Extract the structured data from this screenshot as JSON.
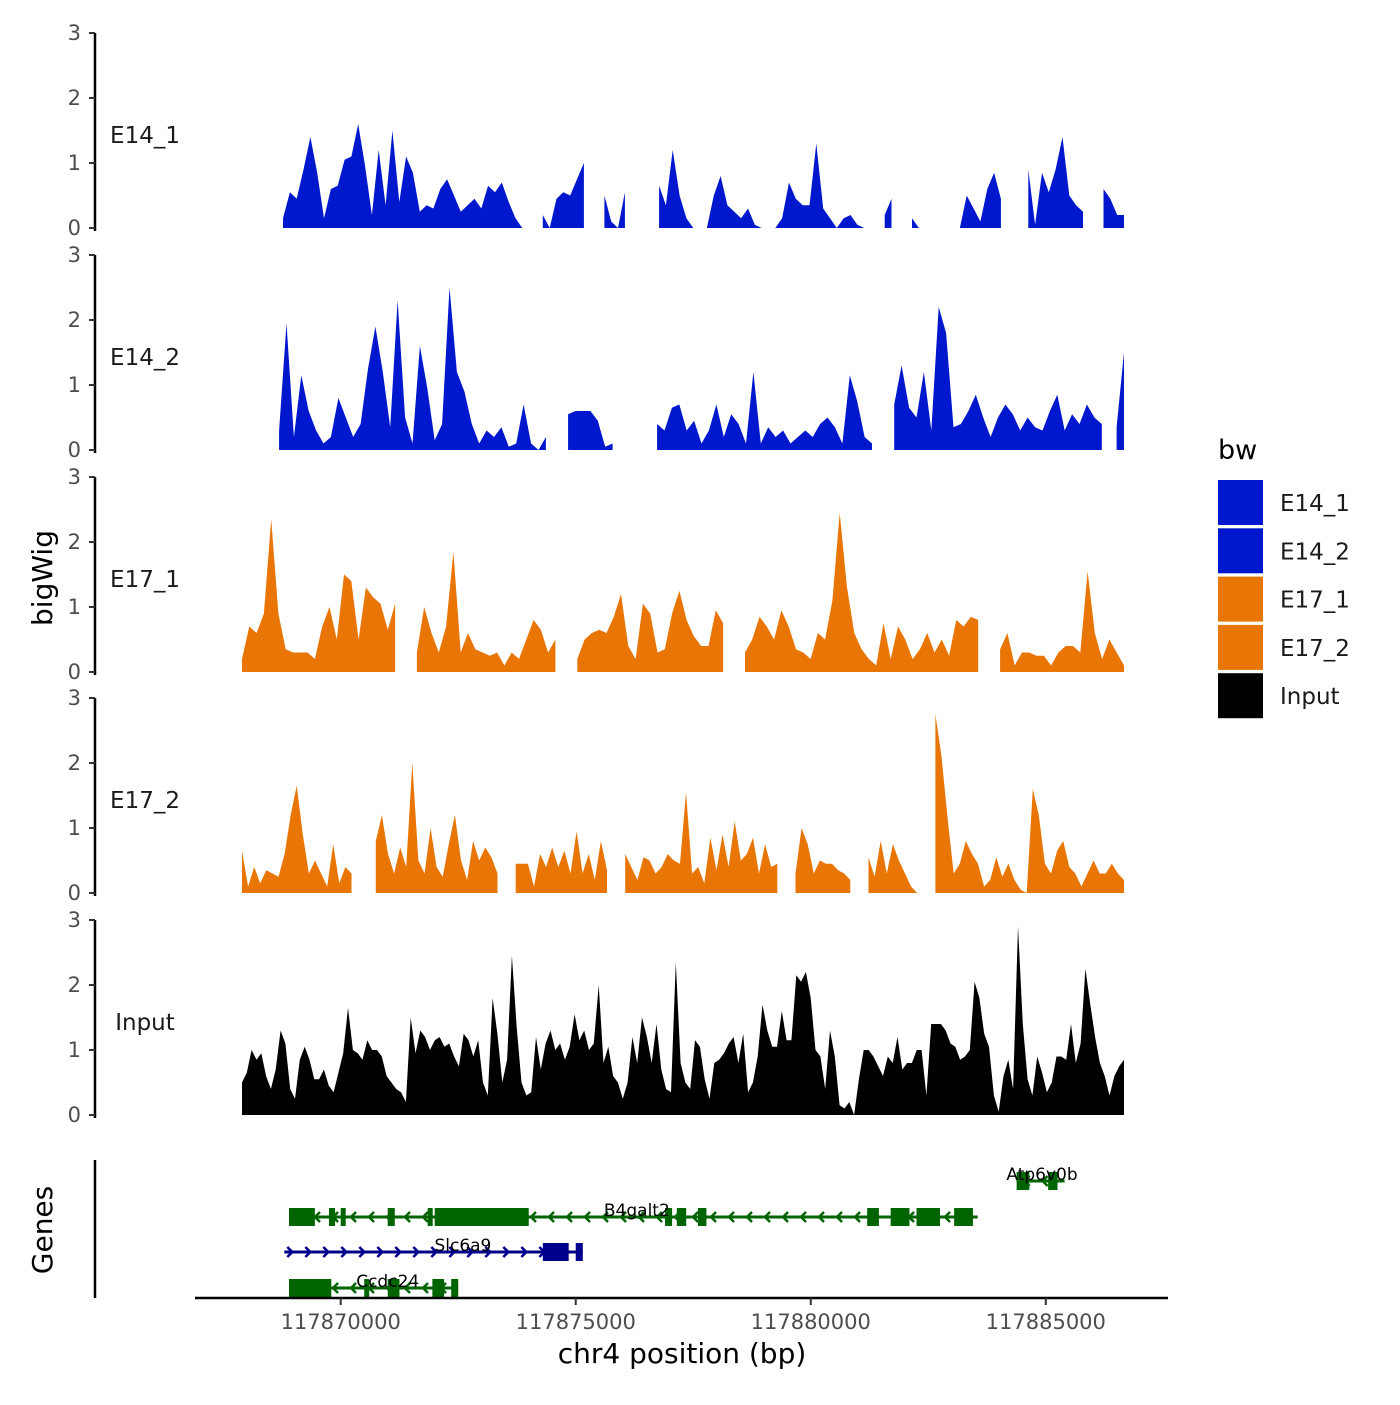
{
  "chart_data": {
    "type": "area",
    "title": "",
    "xlabel": "chr4 position (bp)",
    "ylabel": "bigWig",
    "genes_panel_label": "Genes",
    "xlim": [
      117866900,
      117887600
    ],
    "ylim": [
      0,
      3
    ],
    "y_ticks": [
      0,
      1,
      2,
      3
    ],
    "x_ticks": [
      117870000,
      117875000,
      117880000,
      117885000
    ],
    "x_tick_labels": [
      "117870000",
      "117875000",
      "117880000",
      "117885000"
    ],
    "legend": {
      "title": "bw",
      "position": "right",
      "entries": [
        {
          "label": "E14_1",
          "color": "#0018CD"
        },
        {
          "label": "E14_2",
          "color": "#0018CD"
        },
        {
          "label": "E17_1",
          "color": "#E87504"
        },
        {
          "label": "E17_2",
          "color": "#E87504"
        },
        {
          "label": "Input",
          "color": "#000000"
        }
      ]
    },
    "series": [
      {
        "name": "E14_1",
        "color": "#0018CD",
        "values": [
          0,
          0.25,
          0,
          0,
          0,
          0.35,
          0.15,
          0.55,
          0.45,
          0.9,
          1.4,
          0.85,
          0.15,
          0.6,
          0.65,
          1.05,
          1.1,
          1.6,
          0.95,
          0.2,
          1.2,
          0.35,
          1.5,
          0.4,
          1.1,
          0.85,
          0.25,
          0.35,
          0.3,
          0.6,
          0.75,
          0.5,
          0.25,
          0.35,
          0.45,
          0.3,
          0.65,
          0.55,
          0.7,
          0.4,
          0.15,
          0,
          0.55,
          0.6,
          0.2,
          0,
          0.45,
          0.55,
          0.5,
          0.75,
          1,
          0.5,
          0.95,
          0.5,
          0.1,
          0,
          0.55,
          1.25,
          0.45,
          0.35,
          1.48,
          0.65,
          0.35,
          1.2,
          0.5,
          0.15,
          0,
          0,
          0,
          0.5,
          0.8,
          0.35,
          0.25,
          0.15,
          0.3,
          0.05,
          0,
          0,
          0,
          0.15,
          0.7,
          0.45,
          0.35,
          0.35,
          1.3,
          0.3,
          0.15,
          0,
          0.15,
          0.2,
          0.05,
          0,
          0.25,
          0,
          0.2,
          0.45,
          0.1,
          0.25,
          0.15,
          0,
          0,
          0,
          0,
          1.55,
          0.9,
          0,
          0.5,
          0.3,
          0.1,
          0.6,
          0.85,
          0.45,
          0.1,
          0,
          0,
          0.9,
          0.05,
          0.85,
          0.55,
          0.9,
          1.4,
          0.5,
          0.35,
          0.25,
          0.2,
          0,
          0.6,
          0.45,
          0.2,
          0.2
        ],
        "gaps": [
          [
            0,
            1
          ],
          [
            3,
            5
          ],
          [
            42,
            43
          ],
          [
            51,
            52
          ],
          [
            57,
            60
          ],
          [
            92,
            93
          ],
          [
            96,
            97
          ],
          [
            101,
            104
          ],
          [
            112,
            114
          ],
          [
            124,
            125
          ]
        ]
      },
      {
        "name": "E14_2",
        "color": "#0018CD",
        "values": [
          0,
          0,
          0,
          0,
          0.1,
          0.3,
          1.95,
          0.2,
          1.15,
          0.6,
          0.3,
          0.1,
          0.2,
          0.8,
          0.5,
          0.2,
          0.4,
          1.25,
          1.9,
          1.2,
          0.35,
          2.3,
          0.5,
          0.1,
          1.6,
          0.95,
          0.15,
          0.4,
          2.5,
          1.2,
          0.9,
          0.4,
          0.1,
          0.3,
          0.2,
          0.35,
          0.05,
          0.1,
          0.7,
          0.1,
          0,
          0.2,
          0,
          0,
          0.55,
          0.6,
          0.6,
          0.6,
          0.45,
          0.05,
          0.1,
          0,
          0.2,
          0.1,
          0,
          0.15,
          0.4,
          0.3,
          0.65,
          0.7,
          0.3,
          0.45,
          0.1,
          0.3,
          0.7,
          0.2,
          0.55,
          0.4,
          0.1,
          1.2,
          0.1,
          0.35,
          0.2,
          0.3,
          0.1,
          0.2,
          0.3,
          0.2,
          0.4,
          0.5,
          0.35,
          0.1,
          1.15,
          0.75,
          0.2,
          0.1,
          0.3,
          0,
          0.7,
          1.3,
          0.65,
          0.5,
          1.2,
          0.3,
          2.2,
          1.8,
          0.35,
          0.4,
          0.6,
          0.85,
          0.5,
          0.2,
          0.5,
          0.7,
          0.55,
          0.3,
          0.5,
          0.35,
          0.3,
          0.6,
          0.85,
          0.3,
          0.55,
          0.4,
          0.7,
          0.5,
          0.4,
          0.6,
          0.35,
          1.5
        ],
        "gaps": [
          [
            0,
            4
          ],
          [
            42,
            43
          ],
          [
            51,
            52
          ],
          [
            54,
            55
          ],
          [
            86,
            87
          ],
          [
            117,
            117
          ]
        ]
      },
      {
        "name": "E17_1",
        "color": "#E87504",
        "values": [
          0.2,
          0.7,
          0.6,
          0.9,
          2.35,
          0.9,
          0.35,
          0.3,
          0.3,
          0.3,
          0.2,
          0.7,
          1,
          0.5,
          1.5,
          1.4,
          0.5,
          1.3,
          1.15,
          1.05,
          0.65,
          1.05,
          0.3,
          0,
          0.3,
          1,
          0.6,
          0.3,
          0.7,
          1.85,
          0.3,
          0.6,
          0.35,
          0.3,
          0.25,
          0.3,
          0.1,
          0.3,
          0.2,
          0.5,
          0.8,
          0.65,
          0.3,
          0.5,
          0.25,
          0,
          0.2,
          0.5,
          0.6,
          0.65,
          0.6,
          0.85,
          1.2,
          0.4,
          0.2,
          1.05,
          0.9,
          0.3,
          0.35,
          0.9,
          1.25,
          0.8,
          0.55,
          0.4,
          0.4,
          0.95,
          0.75,
          0.35,
          0,
          0.3,
          0.5,
          0.85,
          0.7,
          0.5,
          0.95,
          0.7,
          0.35,
          0.3,
          0.2,
          0.6,
          0.5,
          1.1,
          2.45,
          1.3,
          0.6,
          0.35,
          0.2,
          0.1,
          0.75,
          0.2,
          0.7,
          0.5,
          0.2,
          0.35,
          0.6,
          0.3,
          0.5,
          0.25,
          0.8,
          0.7,
          0.85,
          0.8,
          0.25,
          0,
          0.35,
          0.6,
          0.1,
          0.3,
          0.3,
          0.25,
          0.25,
          0.1,
          0.3,
          0.4,
          0.4,
          0.3,
          1.55,
          0.6,
          0.2,
          0.5,
          0.3,
          0.1
        ],
        "gaps": [
          [
            22,
            23
          ],
          [
            44,
            45
          ],
          [
            67,
            68
          ],
          [
            102,
            103
          ]
        ]
      },
      {
        "name": "E17_2",
        "color": "#E87504",
        "values": [
          0.65,
          0.1,
          0.4,
          0.15,
          0.35,
          0.3,
          0.25,
          0.6,
          1.2,
          1.65,
          0.9,
          0.3,
          0.5,
          0.3,
          0.1,
          0.75,
          0.15,
          0.4,
          0.3,
          0,
          0,
          0.3,
          0.8,
          1.2,
          0.6,
          0.3,
          0.7,
          0.4,
          2,
          0.5,
          0.3,
          1,
          0.4,
          0.25,
          0.75,
          1.2,
          0.5,
          0.2,
          0.8,
          0.5,
          0.7,
          0.55,
          0.3,
          0.2,
          0,
          0.45,
          0.45,
          0.45,
          0.1,
          0.6,
          0.4,
          0.7,
          0.4,
          0.65,
          0.3,
          0.95,
          0.3,
          0.6,
          0.2,
          0.8,
          0.35,
          0.1,
          0,
          0.6,
          0.4,
          0.2,
          0.55,
          0.5,
          0.3,
          0.4,
          0.6,
          0.5,
          0.45,
          1.55,
          0.3,
          0.4,
          0.15,
          0.85,
          0.35,
          0.9,
          0.4,
          1.1,
          0.5,
          0.6,
          0.85,
          0.3,
          0.75,
          0.4,
          0.45,
          0.2,
          0,
          0.3,
          1,
          0.75,
          0.3,
          0.5,
          0.45,
          0.45,
          0.35,
          0.3,
          0.2,
          0,
          0.6,
          0.55,
          0.25,
          0.8,
          0.3,
          0.75,
          0.5,
          0.3,
          0.1,
          0,
          0.4,
          0.6,
          2.75,
          2.1,
          1.15,
          0.3,
          0.45,
          0.8,
          0.6,
          0.45,
          0.1,
          0.2,
          0.55,
          0.25,
          0.45,
          0.2,
          0.05,
          0,
          1.6,
          1.2,
          0.45,
          0.3,
          0.65,
          0.8,
          0.4,
          0.3,
          0.1,
          0.3,
          0.5,
          0.3,
          0.3,
          0.45,
          0.3,
          0.2
        ],
        "gaps": [
          [
            19,
            21
          ],
          [
            43,
            44
          ],
          [
            61,
            62
          ],
          [
            89,
            90
          ],
          [
            101,
            102
          ],
          [
            112,
            113
          ]
        ]
      },
      {
        "name": "Input",
        "color": "#000000",
        "values": [
          0.5,
          0.65,
          1,
          0.85,
          0.95,
          0.6,
          0.4,
          0.7,
          1.3,
          1.1,
          0.4,
          0.25,
          0.85,
          1.05,
          0.85,
          0.55,
          0.55,
          0.7,
          0.45,
          0.35,
          0.65,
          0.95,
          1.65,
          1,
          0.95,
          0.85,
          1.15,
          1,
          1,
          0.9,
          0.6,
          0.5,
          0.4,
          0.35,
          0.2,
          1.5,
          0.95,
          1.3,
          1.2,
          1,
          1.15,
          1.2,
          1.05,
          1.1,
          0.9,
          0.75,
          1.25,
          1.15,
          0.9,
          1.15,
          0.5,
          0.3,
          1.8,
          1.25,
          0.5,
          0.85,
          2.45,
          1.35,
          0.5,
          0.3,
          0.35,
          1.2,
          0.7,
          1.1,
          1.3,
          1,
          1.1,
          0.85,
          1.05,
          1.55,
          1.15,
          1.3,
          1,
          1.1,
          2,
          0.8,
          1.05,
          0.6,
          0.5,
          0.25,
          0.5,
          1.2,
          0.8,
          1.5,
          1.2,
          0.8,
          1.4,
          0.7,
          0.4,
          0.35,
          2.35,
          0.8,
          0.5,
          0.4,
          1.15,
          1.05,
          0.55,
          0.25,
          0.8,
          0.85,
          0.95,
          1.1,
          1.2,
          0.8,
          1.25,
          0.35,
          0.5,
          0.9,
          1.7,
          1.3,
          1.05,
          1.05,
          1.6,
          1.15,
          1.15,
          2.15,
          2.05,
          2.2,
          1.8,
          1,
          0.9,
          0.4,
          1.3,
          0.9,
          0.15,
          0.1,
          0.2,
          0,
          0.55,
          1,
          1,
          0.9,
          0.75,
          0.6,
          0.9,
          0.8,
          1.2,
          0.7,
          0.8,
          0.8,
          1,
          1,
          0.3,
          1.4,
          1.4,
          1.4,
          1.3,
          1.1,
          1.05,
          0.85,
          0.9,
          1,
          2.05,
          1.8,
          1.25,
          1.05,
          0.3,
          0.05,
          0.6,
          0.85,
          0.4,
          2.9,
          1.4,
          0.55,
          0.3,
          0.9,
          0.65,
          0.35,
          0.5,
          0.9,
          0.9,
          0.85,
          1.4,
          0.8,
          1.1,
          2.25,
          1.7,
          1.2,
          0.8,
          0.6,
          0.3,
          0.6,
          0.75,
          0.85
        ]
      }
    ],
    "tracks": [
      {
        "label": "E14_1"
      },
      {
        "label": "E14_2"
      },
      {
        "label": "E17_1"
      },
      {
        "label": "E17_2"
      },
      {
        "label": "Input"
      }
    ],
    "genes": [
      {
        "name": "Atp6v0b",
        "label_x": 117884920,
        "start": 117884380,
        "end": 117885400,
        "strand": "-",
        "color": "#006400",
        "row": 0,
        "exons": [
          [
            117884380,
            117884650
          ],
          [
            117885050,
            117885250
          ]
        ]
      },
      {
        "name": "B4galt2",
        "label_x": 117876300,
        "start": 117868900,
        "end": 117883550,
        "strand": "-",
        "color": "#006400",
        "row": 1,
        "exons": [
          [
            117868900,
            117869450
          ],
          [
            117869750,
            117869880
          ],
          [
            117870000,
            117870090
          ],
          [
            117871000,
            117871150
          ],
          [
            117871850,
            117871950
          ],
          [
            117872000,
            117874000
          ],
          [
            117876900,
            117877050
          ],
          [
            117877150,
            117877350
          ],
          [
            117877600,
            117877780
          ],
          [
            117881200,
            117881450
          ],
          [
            117881700,
            117882100
          ],
          [
            117882250,
            117882750
          ],
          [
            117883050,
            117883450
          ]
        ]
      },
      {
        "name": "Slc6a9",
        "label_x": 117872600,
        "start": 117868800,
        "end": 117875150,
        "strand": "+",
        "color": "#00008B",
        "row": 2,
        "exons": [
          [
            117874300,
            117874850
          ],
          [
            117875000,
            117875150
          ]
        ]
      },
      {
        "name": "Ccdc24",
        "label_x": 117871000,
        "start": 117868900,
        "end": 117872500,
        "strand": "-",
        "color": "#006400",
        "row": 3,
        "exons": [
          [
            117868900,
            117869800
          ],
          [
            117870500,
            117870600
          ],
          [
            117871000,
            117871250
          ],
          [
            117871950,
            117872200
          ],
          [
            117872350,
            117872500
          ]
        ]
      }
    ]
  }
}
